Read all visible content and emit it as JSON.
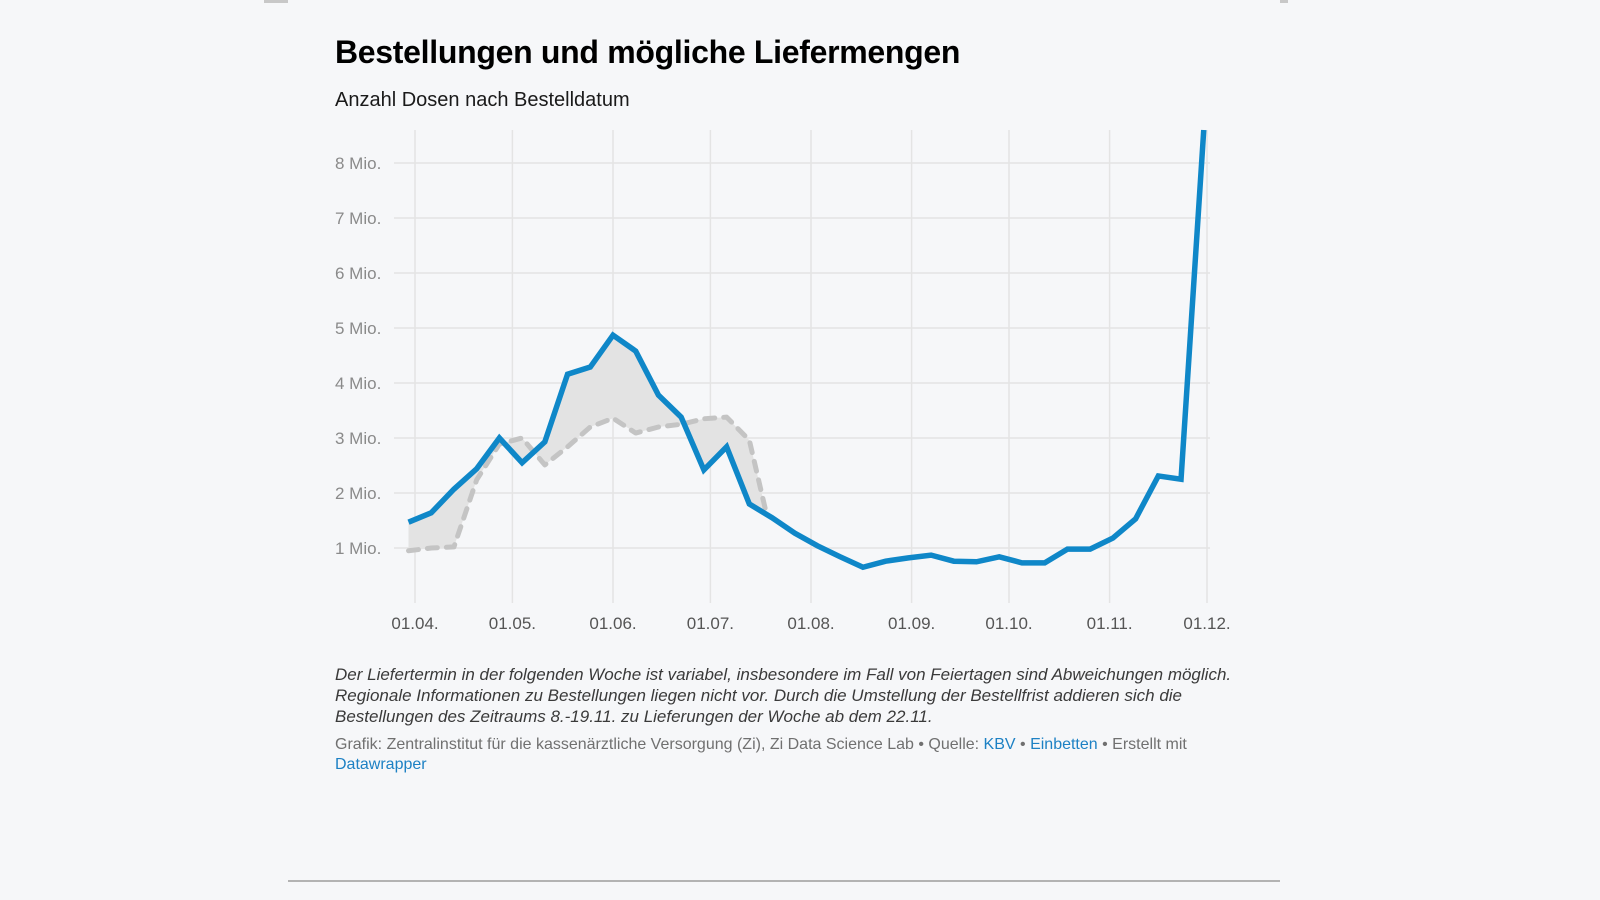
{
  "header": {
    "title": "Bestellungen und mögliche Liefermengen",
    "subtitle": "Anzahl Dosen nach Bestelldatum"
  },
  "footer": {
    "notes": "Der Liefertermin in der folgenden Woche ist variabel, insbesondere im Fall von Feiertagen sind Abweichungen möglich. Regionale Informationen zu Bestellungen liegen nicht vor. Durch die Umstellung der Bestellfrist addieren sich die Bestellungen des Zeitraums 8.-19.11. zu Lieferungen der Woche ab dem 22.11.",
    "byline_prefix": "Grafik: Zentralinstitut für die kassenärztliche Versorgung (Zi), Zi Data Science Lab • Quelle: ",
    "source_link": "KBV",
    "sep1": " • ",
    "embed_link": "Einbetten",
    "sep2": " • Erstellt mit ",
    "tool_link": "Datawrapper"
  },
  "colors": {
    "orders": "#0f87c8",
    "delivery": "#c4c4c4",
    "area_fill": "#e3e3e3",
    "grid": "#e4e4e4",
    "tick_text": "#8a8a8a",
    "x_tick_text": "#555555"
  },
  "chart_data": {
    "type": "line",
    "title": "Bestellungen und mögliche Liefermengen",
    "subtitle": "Anzahl Dosen nach Bestelldatum",
    "xlabel": "",
    "ylabel": "",
    "grid": true,
    "x_ticks": [
      {
        "label": "01.04.",
        "day": 0
      },
      {
        "label": "01.05.",
        "day": 30
      },
      {
        "label": "01.06.",
        "day": 61
      },
      {
        "label": "01.07.",
        "day": 91
      },
      {
        "label": "01.08.",
        "day": 122
      },
      {
        "label": "01.09.",
        "day": 153
      },
      {
        "label": "01.10.",
        "day": 183
      },
      {
        "label": "01.11.",
        "day": 214
      },
      {
        "label": "01.12.",
        "day": 244
      }
    ],
    "y_ticks": [
      {
        "label": "1 Mio.",
        "value": 1
      },
      {
        "label": "2 Mio.",
        "value": 2
      },
      {
        "label": "3 Mio.",
        "value": 3
      },
      {
        "label": "4 Mio.",
        "value": 4
      },
      {
        "label": "5 Mio.",
        "value": 5
      },
      {
        "label": "6 Mio.",
        "value": 6
      },
      {
        "label": "7 Mio.",
        "value": 7
      },
      {
        "label": "8 Mio.",
        "value": 8
      }
    ],
    "xlim_days": [
      -2,
      250
    ],
    "ylim": [
      0,
      8.6
    ],
    "y_unit": "Mio. Dosen",
    "series": [
      {
        "name": "Bestellungen",
        "style": "solid",
        "x_days": [
          -2,
          5,
          12,
          19,
          26,
          33,
          40,
          47,
          54,
          61,
          68,
          75,
          82,
          89,
          96,
          103,
          110,
          117,
          124,
          131,
          138,
          145,
          152,
          159,
          166,
          173,
          180,
          187,
          194,
          201,
          208,
          215,
          222,
          229,
          236,
          243
        ],
        "values": [
          1.47,
          1.64,
          2.07,
          2.44,
          3.0,
          2.55,
          2.93,
          4.16,
          4.29,
          4.87,
          4.58,
          3.78,
          3.38,
          2.42,
          2.84,
          1.8,
          1.55,
          1.27,
          1.04,
          0.84,
          0.65,
          0.76,
          0.82,
          0.87,
          0.76,
          0.75,
          0.84,
          0.73,
          0.73,
          0.98,
          0.98,
          1.18,
          1.53,
          2.31,
          2.25,
          8.6
        ]
      },
      {
        "name": "Mögliche Liefermengen",
        "style": "dashed",
        "x_days": [
          -2,
          5,
          12,
          19,
          26,
          33,
          40,
          47,
          54,
          61,
          68,
          75,
          82,
          89,
          96,
          103,
          108
        ],
        "values": [
          0.95,
          1.0,
          1.02,
          2.24,
          2.89,
          3.0,
          2.51,
          2.84,
          3.2,
          3.36,
          3.09,
          3.2,
          3.25,
          3.35,
          3.38,
          2.96,
          1.69
        ]
      }
    ],
    "annotations": [],
    "legend": "none"
  }
}
